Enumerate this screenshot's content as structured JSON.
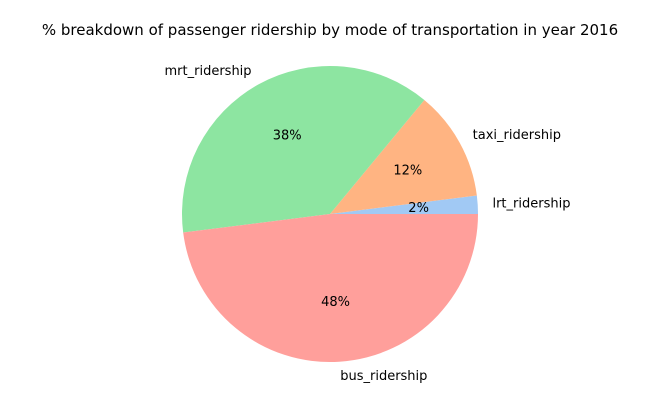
{
  "chart_data": {
    "type": "pie",
    "title": "% breakdown of passenger ridership by mode of transportation in year 2016",
    "autopct_format": "{p}%",
    "start_angle_deg": 0,
    "direction": "counterclockwise",
    "slices": [
      {
        "label": "lrt_ridership",
        "value": 2,
        "display": "2%",
        "color": "#a1c9f4"
      },
      {
        "label": "taxi_ridership",
        "value": 12,
        "display": "12%",
        "color": "#ffb482"
      },
      {
        "label": "mrt_ridership",
        "value": 38,
        "display": "38%",
        "color": "#8de5a1"
      },
      {
        "label": "bus_ridership",
        "value": 48,
        "display": "48%",
        "color": "#ff9f9b"
      }
    ]
  }
}
